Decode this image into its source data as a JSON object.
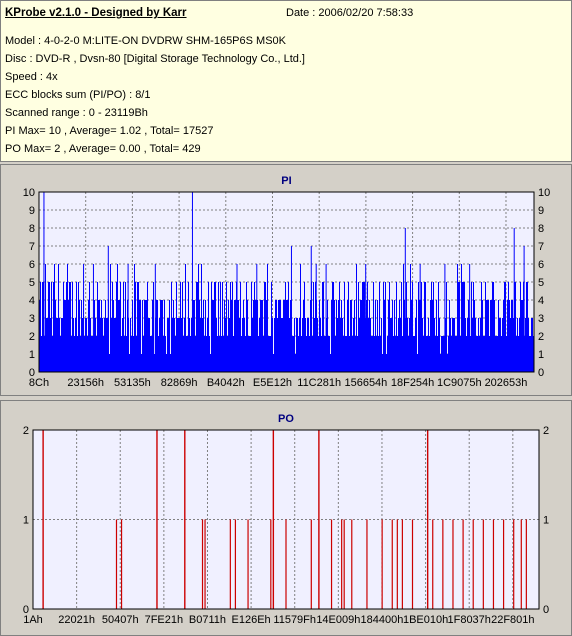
{
  "info": {
    "title": "KProbe v2.1.0 - Designed by Karr",
    "date": "Date : 2006/02/20 7:58:33",
    "lines": [
      "Model : 4-0-2-0 M:LITE-ON DVDRW SHM-165P6S MS0K",
      "Disc : DVD-R , Dvsn-80 [Digital Storage Technology Co., Ltd.]",
      "Speed : 4x",
      "ECC blocks sum (PI/PO) : 8/1",
      "Scanned range : 0 - 23119Bh",
      "PI Max= 10 , Average= 1.02 , Total= 17527",
      "PO Max= 2 , Average= 0.00 , Total= 429"
    ]
  },
  "colors": {
    "pi": "#0000ff",
    "po": "#cc0000",
    "plot_bg": "#f0f0ff",
    "grid": "#808080",
    "title": "#000080"
  },
  "chart_data": [
    {
      "type": "bar",
      "title": "PI",
      "ylim": [
        0,
        10
      ],
      "yticks": [
        0,
        1,
        2,
        3,
        4,
        5,
        6,
        7,
        8,
        9,
        10
      ],
      "xticks": [
        "8Ch",
        "23156h",
        "53135h",
        "82869h",
        "B4042h",
        "E5E12h",
        "11C281h",
        "156654h",
        "18F254h",
        "1C9075h",
        "202653h"
      ],
      "grid": true,
      "baseline_range": [
        2,
        5
      ],
      "spikes": [
        {
          "x": 0.01,
          "y": 10
        },
        {
          "x": 0.03,
          "y": 5
        },
        {
          "x": 0.09,
          "y": 6
        },
        {
          "x": 0.11,
          "y": 6
        },
        {
          "x": 0.14,
          "y": 7
        },
        {
          "x": 0.18,
          "y": 6
        },
        {
          "x": 0.235,
          "y": 6
        },
        {
          "x": 0.31,
          "y": 10
        },
        {
          "x": 0.4,
          "y": 6
        },
        {
          "x": 0.44,
          "y": 6
        },
        {
          "x": 0.51,
          "y": 7
        },
        {
          "x": 0.55,
          "y": 7
        },
        {
          "x": 0.56,
          "y": 6
        },
        {
          "x": 0.58,
          "y": 6
        },
        {
          "x": 0.66,
          "y": 6
        },
        {
          "x": 0.74,
          "y": 8
        },
        {
          "x": 0.77,
          "y": 6
        },
        {
          "x": 0.82,
          "y": 6
        },
        {
          "x": 0.87,
          "y": 6
        },
        {
          "x": 0.96,
          "y": 8
        },
        {
          "x": 0.98,
          "y": 7
        }
      ]
    },
    {
      "type": "bar",
      "title": "PO",
      "ylim": [
        0,
        2
      ],
      "yticks": [
        0,
        1,
        2
      ],
      "xticks": [
        "1Ah",
        "22021h",
        "50407h",
        "7FE21h",
        "B0711h",
        "E126Eh",
        "11579Fh",
        "14E009h",
        "184400h",
        "1BE010h",
        "1F8037h",
        "22F801h"
      ],
      "grid": true,
      "twos": [
        0.02,
        0.245,
        0.3,
        0.475,
        0.565,
        0.78
      ],
      "ones": [
        0.165,
        0.175,
        0.335,
        0.34,
        0.39,
        0.4,
        0.425,
        0.47,
        0.5,
        0.55,
        0.59,
        0.61,
        0.615,
        0.63,
        0.66,
        0.69,
        0.71,
        0.72,
        0.73,
        0.75,
        0.79,
        0.81,
        0.83,
        0.85,
        0.87,
        0.89,
        0.91,
        0.93,
        0.95,
        0.965,
        0.975
      ]
    }
  ]
}
